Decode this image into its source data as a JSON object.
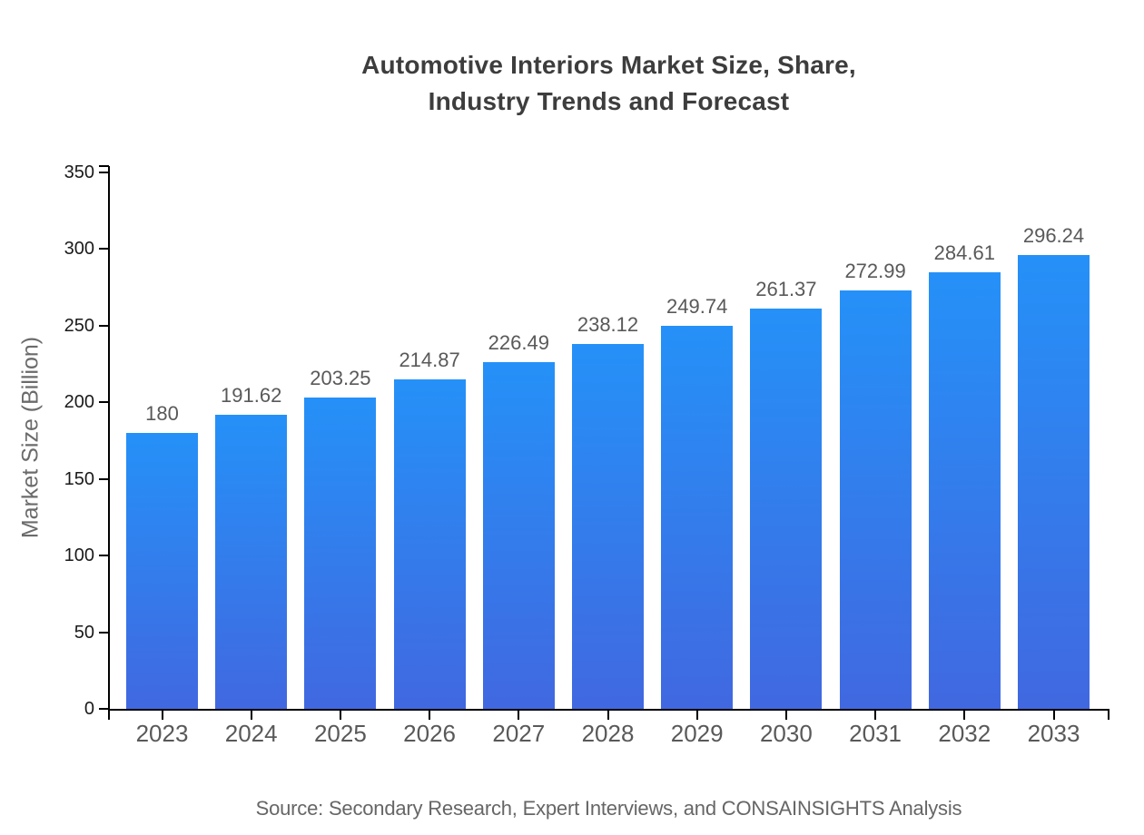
{
  "title": {
    "line1": "Automotive Interiors Market Size, Share,",
    "line2": "Industry Trends and Forecast"
  },
  "y_axis_title": "Market Size (Billion)",
  "source": "Source: Secondary Research, Expert Interviews, and CONSAINSIGHTS Analysis",
  "colors": {
    "bar_gradient_top": "#2591f8",
    "bar_gradient_bottom": "#4168e0",
    "axis": "#000000",
    "title_text": "#3d3d3d",
    "tick_label_y": "#1a1a1a",
    "tick_label_x": "#595959",
    "value_label": "#595959",
    "source_text": "#666666"
  },
  "chart_data": {
    "type": "bar",
    "title": "Automotive Interiors Market Size, Share, Industry Trends and Forecast",
    "categories": [
      "2023",
      "2024",
      "2025",
      "2026",
      "2027",
      "2028",
      "2029",
      "2030",
      "2031",
      "2032",
      "2033"
    ],
    "values": [
      180,
      191.62,
      203.25,
      214.87,
      226.49,
      238.12,
      249.74,
      261.37,
      272.99,
      284.61,
      296.24
    ],
    "value_labels": [
      "180",
      "191.62",
      "203.25",
      "214.87",
      "226.49",
      "238.12",
      "249.74",
      "261.37",
      "272.99",
      "284.61",
      "296.24"
    ],
    "xlabel": "",
    "ylabel": "Market Size (Billion)",
    "ylim": [
      0,
      350
    ],
    "ytick_step": 50,
    "yticks": [
      0,
      50,
      100,
      150,
      200,
      250,
      300,
      350
    ],
    "grid": false,
    "legend": "none",
    "bar_color_top": "#2591f8",
    "bar_color_bottom": "#4168e0"
  }
}
